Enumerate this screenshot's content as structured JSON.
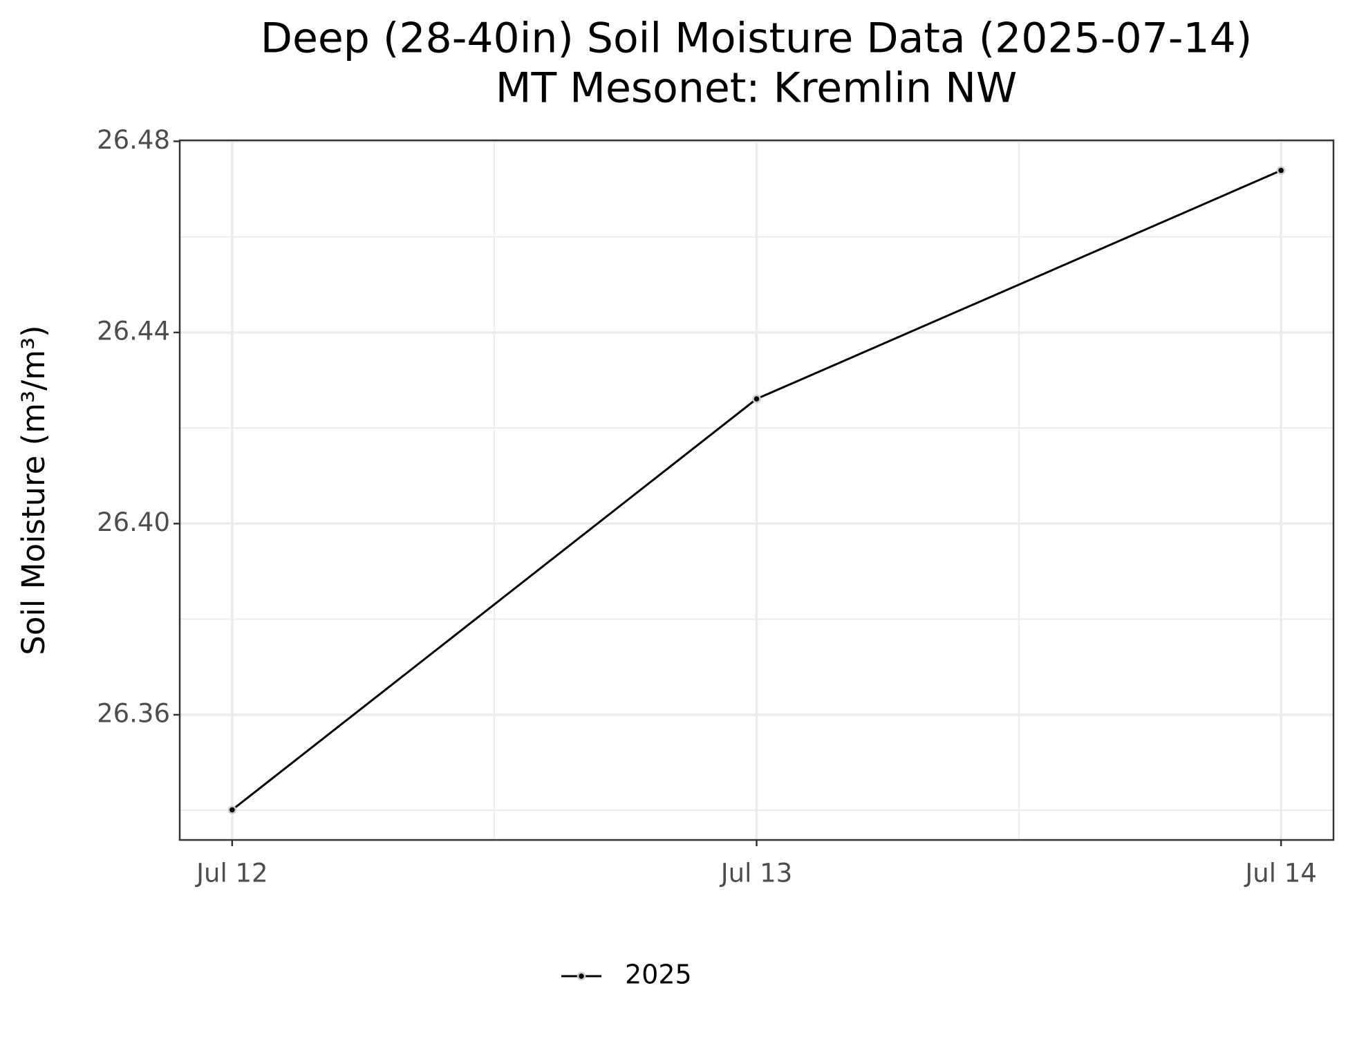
{
  "chart_data": {
    "type": "line",
    "title": "Deep (28-40in) Soil Moisture Data (2025-07-14)",
    "subtitle": "MT Mesonet: Kremlin NW",
    "y_label": "Soil Moisture (m³/m³)",
    "categories": [
      "Jul 12",
      "Jul 13",
      "Jul 14"
    ],
    "series": [
      {
        "name": "2025",
        "color": "#000000",
        "values": [
          26.3401,
          26.4261,
          26.4739
        ]
      }
    ],
    "ylim": [
      26.3338,
      26.4802
    ],
    "yticks": [
      {
        "value": 26.36,
        "label": "26.36"
      },
      {
        "value": 26.4,
        "label": "26.40"
      },
      {
        "value": 26.44,
        "label": "26.44"
      },
      {
        "value": 26.48,
        "label": "26.48"
      }
    ],
    "grid": true,
    "legend": "bottom"
  }
}
